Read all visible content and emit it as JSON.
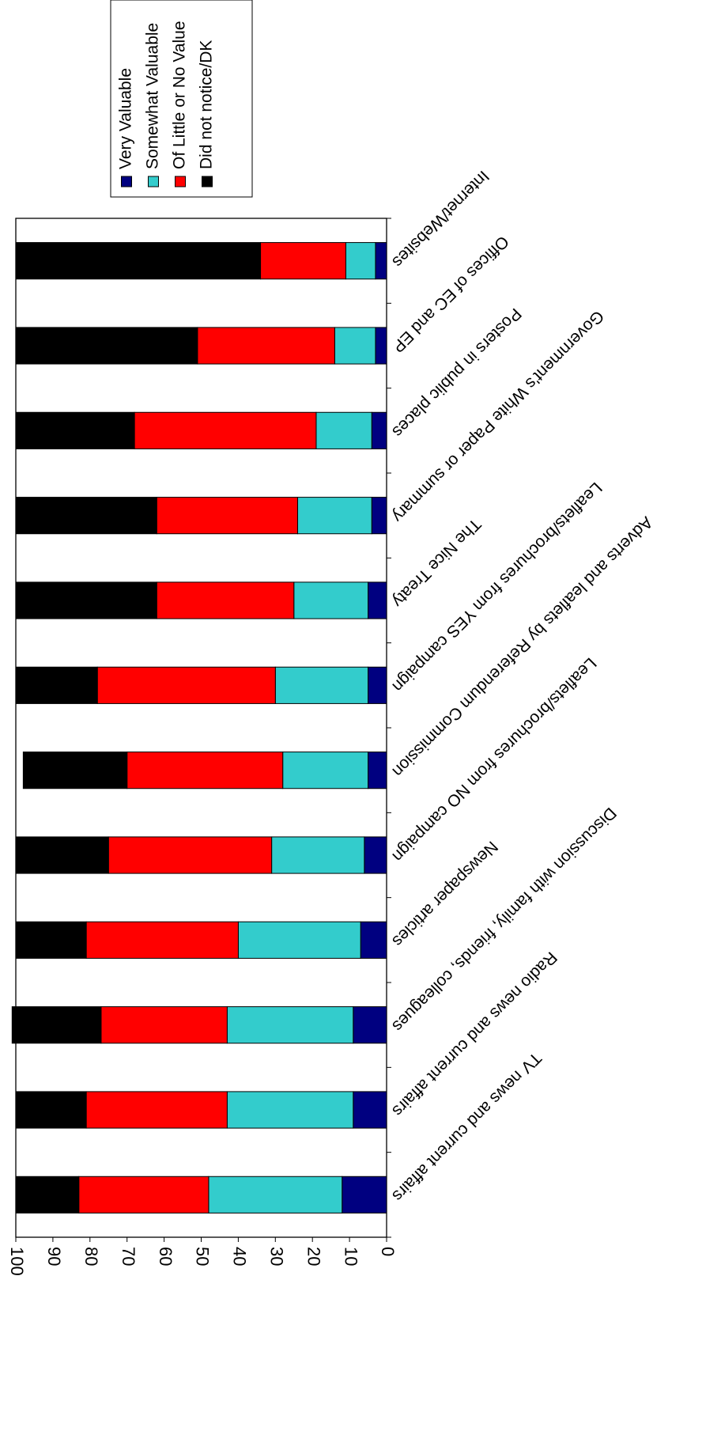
{
  "chart_data": {
    "type": "bar",
    "stacked": true,
    "orientation": "horizontal",
    "categories": [
      "TV news and current affairs",
      "Radio news and current affairs",
      "Discussion with family, friends, colleagues",
      "Newspaper articles",
      "Leaflets/brochures from NO campaign",
      "Adverts and leaflets by Referendum Commission",
      "Leaflets/brochures from YES campaign",
      "The Nice Treaty",
      "Government's White Paper or summary",
      "Posters in public places",
      "Offices of EC and EP",
      "Internet/Websites"
    ],
    "series": [
      {
        "name": "Very Valuable",
        "color": "#000080",
        "values": [
          12,
          9,
          9,
          7,
          6,
          5,
          5,
          5,
          4,
          4,
          3,
          3
        ]
      },
      {
        "name": "Somewhat Valuable",
        "color": "#33CCCC",
        "values": [
          36,
          34,
          34,
          33,
          25,
          23,
          25,
          20,
          20,
          15,
          11,
          8
        ]
      },
      {
        "name": "Of Little or No Value",
        "color": "#FF0000",
        "values": [
          35,
          38,
          34,
          41,
          44,
          42,
          48,
          37,
          38,
          49,
          37,
          23
        ]
      },
      {
        "name": "Did not notice/DK",
        "color": "#000000",
        "values": [
          17,
          19,
          24,
          19,
          25,
          28,
          22,
          38,
          38,
          32,
          49,
          66
        ]
      }
    ],
    "legend_order": [
      "Did not notice/DK",
      "Of Little or No Value",
      "Somewhat Valuable",
      "Very Valuable"
    ],
    "legend_position": "top",
    "xlim": [
      0,
      100
    ],
    "ticks": [
      "0",
      "10",
      "20",
      "30",
      "40",
      "50",
      "60",
      "70",
      "80",
      "90",
      "100"
    ],
    "grid": false,
    "rotation": "180deg (image upside down)"
  }
}
